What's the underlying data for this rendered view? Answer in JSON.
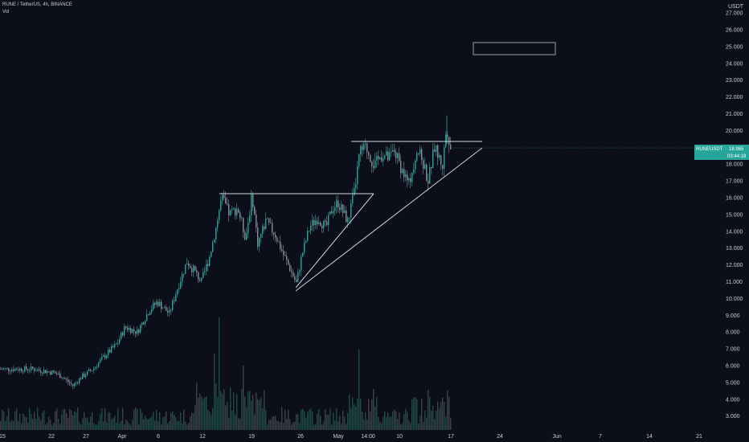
{
  "header": {
    "symbol_line": "RUNE / TetherUS, 4h, BINANCE",
    "volume_label": "Vol"
  },
  "price_axis": {
    "currency": "USDT",
    "labels": [
      "27.000",
      "26.000",
      "25.000",
      "24.000",
      "23.000",
      "22.000",
      "21.000",
      "20.000",
      "19.000",
      "18.000",
      "17.000",
      "16.000",
      "15.000",
      "14.000",
      "13.000",
      "12.000",
      "11.000",
      "10.000",
      "9.000",
      "8.000",
      "7.000",
      "6.000",
      "5.000",
      "4.000",
      "3.000"
    ]
  },
  "time_axis": {
    "labels": [
      "15",
      "22",
      "27",
      "Apr",
      "6",
      "12",
      "19",
      "26",
      "May",
      "14:00",
      "10",
      "17",
      "24",
      "Jun",
      "7",
      "14",
      "21"
    ]
  },
  "last_price": {
    "label": "RUNEUSDT",
    "price": "18.965",
    "countdown": "03:44:18"
  },
  "colors": {
    "background": "#0c0f1a",
    "up": "#26a69a",
    "down": "#8a8e99",
    "volume": "#6b6f7a",
    "lines": "#d1d4dc",
    "badge": "#26a69a"
  },
  "chart_data": {
    "type": "candlestick",
    "title": "RUNE / TetherUS, 4h, BINANCE",
    "ylim": [
      2.5,
      27.3
    ],
    "x": [
      "Mar 15",
      "Mar 22",
      "Mar 27",
      "Apr 1",
      "Apr 6",
      "Apr 12",
      "Apr 19",
      "Apr 26",
      "May 1",
      "May 3 14:00",
      "May 10",
      "May 17"
    ],
    "close": [
      5.8,
      5.6,
      5.2,
      7.0,
      8.8,
      11.2,
      15.5,
      11.2,
      14.8,
      19.0,
      18.5,
      18.965
    ],
    "high_max": 20.9,
    "low_min": 4.6,
    "drawings": [
      {
        "name": "resistance-1",
        "price": 16.3
      },
      {
        "name": "resistance-2",
        "price": 19.3
      },
      {
        "name": "ascending-support",
        "from_price": 10.6,
        "to_price": 19.0
      }
    ],
    "grid": false
  }
}
